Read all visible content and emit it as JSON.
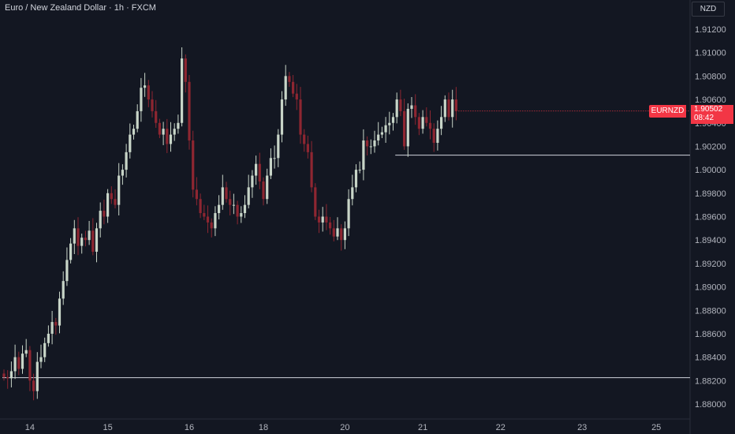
{
  "header": {
    "title": "Euro / New Zealand Dollar · 1h · FXCM"
  },
  "axis": {
    "currency": "NZD"
  },
  "last_price": {
    "symbol": "EURNZD",
    "value": "1.90502",
    "countdown": "08:42"
  },
  "colors": {
    "background": "#131722",
    "up": "#c8d5c8",
    "down": "#8e2631",
    "accent": "#f23645",
    "grid": "#131722",
    "axis_text": "#b2b5be"
  },
  "chart_data": {
    "type": "candlestick",
    "title": "Euro / New Zealand Dollar · 1h · FXCM",
    "xlabel": "",
    "ylabel": "",
    "ylim": [
      1.879,
      1.915
    ],
    "y_ticks": [
      "1.88000",
      "1.88200",
      "1.88400",
      "1.88600",
      "1.88800",
      "1.89000",
      "1.89200",
      "1.89400",
      "1.89600",
      "1.89800",
      "1.90000",
      "1.90200",
      "1.90400",
      "1.90600",
      "1.90800",
      "1.91000",
      "1.91200"
    ],
    "x_ticks": [
      {
        "label": "14",
        "index": 7
      },
      {
        "label": "15",
        "index": 28
      },
      {
        "label": "16",
        "index": 50
      },
      {
        "label": "18",
        "index": 70
      },
      {
        "label": "20",
        "index": 92
      },
      {
        "label": "21",
        "index": 113
      },
      {
        "label": "22",
        "index": 134
      },
      {
        "label": "23",
        "index": 156
      },
      {
        "label": "25",
        "index": 176
      }
    ],
    "horizontal_lines": [
      {
        "price": 1.90125,
        "from_index": 106
      },
      {
        "price": 1.88225,
        "from_index": 0
      }
    ],
    "ohlc_close": [
      1.8823,
      1.8822,
      1.8828,
      1.884,
      1.883,
      1.8843,
      1.8846,
      1.882,
      1.8811,
      1.8836,
      1.884,
      1.8852,
      1.886,
      1.887,
      1.8867,
      1.889,
      1.8905,
      1.8923,
      1.8937,
      1.895,
      1.8935,
      1.8942,
      1.894,
      1.8948,
      1.893,
      1.895,
      1.8965,
      1.896,
      1.898,
      1.8975,
      1.897,
      1.8995,
      1.9,
      1.9015,
      1.903,
      1.9035,
      1.905,
      1.907,
      1.9072,
      1.906,
      1.905,
      1.904,
      1.903,
      1.9035,
      1.9022,
      1.903,
      1.9035,
      1.904,
      1.9095,
      1.9075,
      1.9025,
      1.8983,
      1.8975,
      1.8963,
      1.896,
      1.8955,
      1.895,
      1.8963,
      1.897,
      1.8985,
      1.8975,
      1.897,
      1.897,
      1.896,
      1.8963,
      1.897,
      1.8985,
      1.8995,
      1.9005,
      1.899,
      1.8975,
      1.8995,
      1.901,
      1.901,
      1.903,
      1.906,
      1.908,
      1.9075,
      1.9065,
      1.906,
      1.903,
      1.9022,
      1.9015,
      1.8985,
      1.896,
      1.8955,
      1.896,
      1.8955,
      1.895,
      1.8943,
      1.895,
      1.894,
      1.895,
      1.8975,
      1.8985,
      1.9,
      1.9,
      1.9025,
      1.902,
      1.902,
      1.9025,
      1.903,
      1.9032,
      1.9038,
      1.904,
      1.9045,
      1.906,
      1.905,
      1.902,
      1.9052,
      1.9055,
      1.9045,
      1.9035,
      1.9045,
      1.904,
      1.9035,
      1.9023,
      1.9035,
      1.9045,
      1.906,
      1.9045,
      1.906,
      1.905
    ],
    "note_open_equals_prev_close": true
  }
}
